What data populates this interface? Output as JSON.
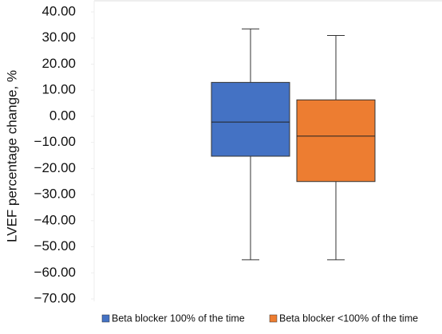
{
  "chart_data": {
    "type": "box",
    "ylabel": "LVEF percentage change, %",
    "ylim": [
      -70,
      40
    ],
    "yticks": [
      {
        "value": 40,
        "label": "40.00"
      },
      {
        "value": 30,
        "label": "30.00"
      },
      {
        "value": 20,
        "label": "20.00"
      },
      {
        "value": 10,
        "label": "10.00"
      },
      {
        "value": 0,
        "label": "0.00"
      },
      {
        "value": -10,
        "label": "−10.00"
      },
      {
        "value": -20,
        "label": "−20.00"
      },
      {
        "value": -30,
        "label": "−30.00"
      },
      {
        "value": -40,
        "label": "−40.00"
      },
      {
        "value": -50,
        "label": "−50.00"
      },
      {
        "value": -60,
        "label": "−60.00"
      },
      {
        "value": -70,
        "label": "−70.00"
      }
    ],
    "series": [
      {
        "name": "Beta blocker 100% of the time",
        "color": "#4472c4",
        "min": -55,
        "q1": -15.3,
        "median": -2.2,
        "q3": 13,
        "max": 33.5
      },
      {
        "name": "Beta blocker <100% of the time",
        "color": "#ed7d31",
        "min": -55,
        "q1": -25,
        "median": -7.6,
        "q3": 6.3,
        "max": 31
      }
    ]
  }
}
